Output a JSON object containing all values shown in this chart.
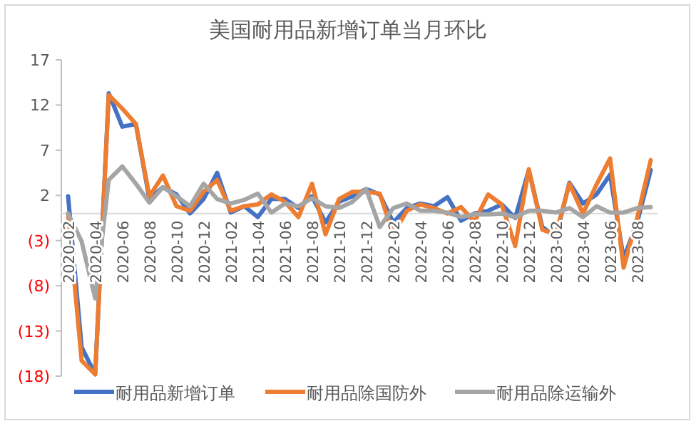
{
  "chart_data": {
    "type": "line",
    "title": "美国耐用品新增订单当月环比",
    "categories": [
      "2020-02",
      null,
      "2020-04",
      null,
      "2020-06",
      null,
      "2020-08",
      null,
      "2020-10",
      null,
      "2020-12",
      null,
      "2021-02",
      null,
      "2021-04",
      null,
      "2021-06",
      null,
      "2021-08",
      null,
      "2021-10",
      null,
      "2021-12",
      null,
      "2022-02",
      null,
      "2022-04",
      null,
      "2022-06",
      null,
      "2022-08",
      null,
      "2022-10",
      null,
      "2022-12",
      null,
      "2023-02",
      null,
      "2023-04",
      null,
      "2023-06",
      null,
      "2023-08",
      null
    ],
    "series": [
      {
        "name": "耐用品新增订单",
        "color": "#4472c4",
        "values": [
          1.9,
          -14.8,
          -17.8,
          13.3,
          9.6,
          9.9,
          1.6,
          2.9,
          2.1,
          0,
          1.6,
          4.5,
          0.1,
          0.8,
          -0.4,
          1.6,
          1.6,
          0.6,
          1.9,
          -1,
          1.3,
          1.9,
          2.7,
          2.1,
          -1,
          0.6,
          1.1,
          0.8,
          1.8,
          -0.8,
          0,
          0.3,
          1.0,
          -0.5,
          4.8,
          -1.5,
          -2.6,
          3.4,
          1.1,
          2.1,
          4.3,
          -5.0,
          -1,
          4.8
        ]
      },
      {
        "name": "耐用品除国防外",
        "color": "#ed7d31",
        "values": [
          0,
          -16.3,
          -17.8,
          13.1,
          11.6,
          9.9,
          1.9,
          4.2,
          0.8,
          0.3,
          2.4,
          3.7,
          0.3,
          0.8,
          1.0,
          2.1,
          1.3,
          -0.4,
          3.3,
          -2.3,
          1.6,
          2.4,
          2.4,
          2.2,
          -2.3,
          0.3,
          1.0,
          0.6,
          0,
          0.7,
          -0.9,
          2.1,
          1.0,
          -3.6,
          4.9,
          -1.8,
          -2.3,
          3.3,
          0,
          3.2,
          6.1,
          -6.0,
          -0.5,
          5.9
        ]
      },
      {
        "name": "耐用品除运输外",
        "color": "#a5a5a5",
        "values": [
          0,
          -3.1,
          -9.4,
          3.7,
          5.2,
          3.3,
          1.2,
          2.9,
          1.9,
          0.8,
          3.3,
          1.6,
          1.1,
          1.5,
          2.2,
          0.1,
          1.1,
          0.8,
          1.7,
          0.8,
          0.6,
          1.3,
          2.7,
          -1.5,
          0.6,
          1.1,
          0.3,
          0.3,
          0.1,
          -0.4,
          -0.1,
          -0.1,
          0,
          -0.4,
          0.3,
          0.3,
          0.1,
          0.6,
          -0.4,
          0.8,
          0.1,
          0.1,
          0.6,
          0.7
        ]
      }
    ],
    "ylim": [
      -18,
      17
    ],
    "yticks": [
      17,
      12,
      7,
      2,
      {
        "value": -3,
        "label": "(3)"
      },
      {
        "value": -8,
        "label": "(8)"
      },
      {
        "value": -13,
        "label": "(13)"
      },
      {
        "value": -18,
        "label": "(18)"
      }
    ],
    "grid": false,
    "legend": "bottom",
    "marker": "none",
    "line_style": "solid"
  }
}
